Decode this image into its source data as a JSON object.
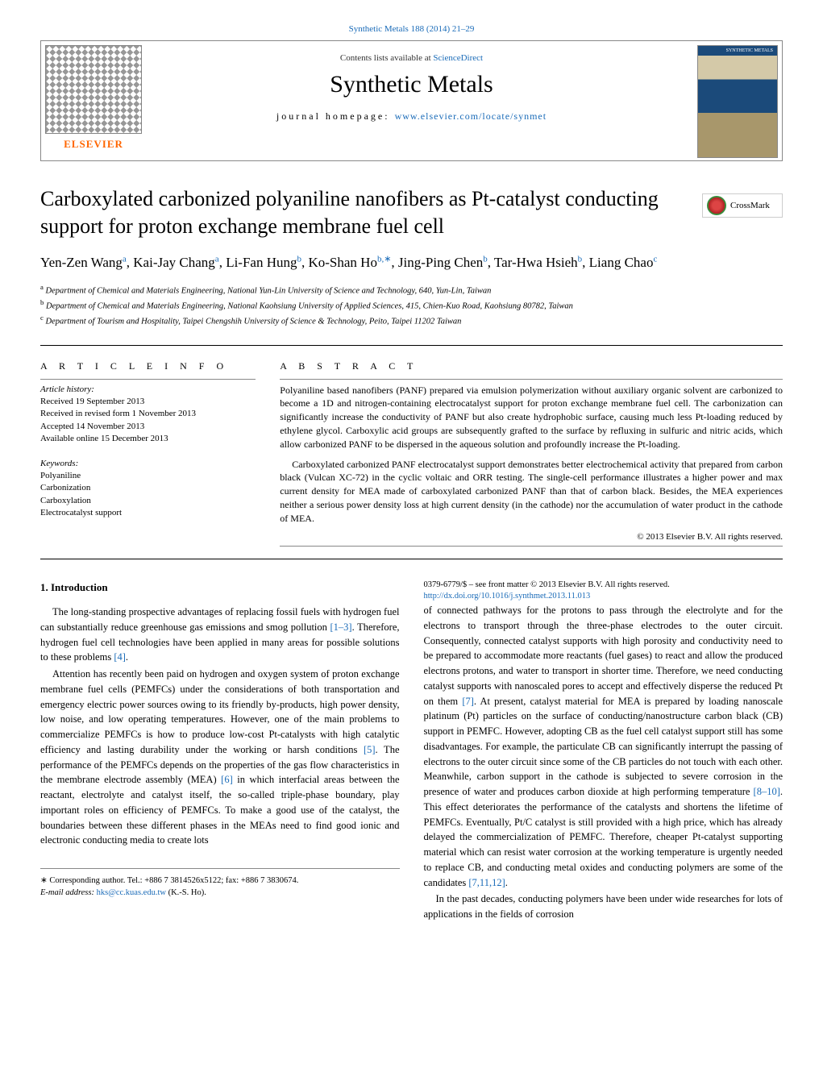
{
  "journal_citation": "Synthetic Metals 188 (2014) 21–29",
  "header": {
    "contents_line_prefix": "Contents lists available at ",
    "contents_line_link": "ScienceDirect",
    "journal_name": "Synthetic Metals",
    "homepage_label": "journal homepage: ",
    "homepage_url": "www.elsevier.com/locate/synmet",
    "publisher": "ELSEVIER"
  },
  "crossmark": "CrossMark",
  "article": {
    "title": "Carboxylated carbonized polyaniline nanofibers as Pt-catalyst conducting support for proton exchange membrane fuel cell",
    "authors_html": "Yen-Zen Wang",
    "authors_parts": [
      {
        "name": "Yen-Zen Wang",
        "sup": "a"
      },
      {
        "name": ", Kai-Jay Chang",
        "sup": "a"
      },
      {
        "name": ", Li-Fan Hung",
        "sup": "b"
      },
      {
        "name": ", Ko-Shan Ho",
        "sup": "b,∗"
      },
      {
        "name": ", Jing-Ping Chen",
        "sup": "b"
      },
      {
        "name": ", Tar-Hwa Hsieh",
        "sup": "b"
      },
      {
        "name": ", Liang Chao",
        "sup": "c"
      }
    ]
  },
  "affiliations": [
    {
      "sup": "a",
      "text": " Department of Chemical and Materials Engineering, National Yun-Lin University of Science and Technology, 640, Yun-Lin, Taiwan"
    },
    {
      "sup": "b",
      "text": " Department of Chemical and Materials Engineering, National Kaohsiung University of Applied Sciences, 415, Chien-Kuo Road, Kaohsiung 80782, Taiwan"
    },
    {
      "sup": "c",
      "text": " Department of Tourism and Hospitality, Taipei Chengshih University of Science & Technology, Peito, Taipei 11202 Taiwan"
    }
  ],
  "info": {
    "label": "A R T I C L E   I N F O",
    "history_title": "Article history:",
    "history": [
      "Received 19 September 2013",
      "Received in revised form 1 November 2013",
      "Accepted 14 November 2013",
      "Available online 15 December 2013"
    ],
    "keywords_title": "Keywords:",
    "keywords": [
      "Polyaniline",
      "Carbonization",
      "Carboxylation",
      "Electrocatalyst support"
    ]
  },
  "abstract": {
    "label": "A B S T R A C T",
    "paragraphs": [
      "Polyaniline based nanofibers (PANF) prepared via emulsion polymerization without auxiliary organic solvent are carbonized to become a 1D and nitrogen-containing electrocatalyst support for proton exchange membrane fuel cell. The carbonization can significantly increase the conductivity of PANF but also create hydrophobic surface, causing much less Pt-loading reduced by ethylene glycol. Carboxylic acid groups are subsequently grafted to the surface by refluxing in sulfuric and nitric acids, which allow carbonized PANF to be dispersed in the aqueous solution and profoundly increase the Pt-loading.",
      "Carboxylated carbonized PANF electrocatalyst support demonstrates better electrochemical activity that prepared from carbon black (Vulcan XC-72) in the cyclic voltaic and ORR testing. The single-cell performance illustrates a higher power and max current density for MEA made of carboxylated carbonized PANF than that of carbon black. Besides, the MEA experiences neither a serious power density loss at high current density (in the cathode) nor the accumulation of water product in the cathode of MEA."
    ],
    "copyright": "© 2013 Elsevier B.V. All rights reserved."
  },
  "section1": {
    "heading": "1.  Introduction",
    "p1_pre": "The long-standing prospective advantages of replacing fossil fuels with hydrogen fuel can substantially reduce greenhouse gas emissions and smog pollution ",
    "p1_ref1": "[1–3]",
    "p1_mid": ". Therefore, hydrogen fuel cell technologies have been applied in many areas for possible solutions to these problems ",
    "p1_ref2": "[4]",
    "p1_end": ".",
    "p2_pre": "Attention has recently been paid on hydrogen and oxygen system of proton exchange membrane fuel cells (PEMFCs) under the considerations of both transportation and emergency electric power sources owing to its friendly by-products, high power density, low noise, and low operating temperatures. However, one of the main problems to commercialize PEMFCs is how to produce low-cost Pt-catalysts with high catalytic efficiency and lasting durability under the working or harsh conditions ",
    "p2_ref1": "[5]",
    "p2_mid": ". The performance of the PEMFCs depends on the properties of the gas flow characteristics in the membrane electrode assembly (MEA) ",
    "p2_ref2": "[6]",
    "p2_end": " in which interfacial areas between the reactant, electrolyte and catalyst itself, the so-called triple-phase boundary, play important roles on efficiency of PEMFCs. To make a good use of the catalyst, the boundaries between these different phases in the MEAs need to find good ionic and electronic conducting media to create lots",
    "p3_pre": "of connected pathways for the protons to pass through the electrolyte and for the electrons to transport through the three-phase electrodes to the outer circuit. Consequently, connected catalyst supports with high porosity and conductivity need to be prepared to accommodate more reactants (fuel gases) to react and allow the produced electrons protons, and water to transport in shorter time. Therefore, we need conducting catalyst supports with nanoscaled pores to accept and effectively disperse the reduced Pt on them ",
    "p3_ref1": "[7]",
    "p3_mid": ". At present, catalyst material for MEA is prepared by loading nanoscale platinum (Pt) particles on the surface of conducting/nanostructure carbon black (CB) support in PEMFC. However, adopting CB as the fuel cell catalyst support still has some disadvantages. For example, the particulate CB can significantly interrupt the passing of electrons to the outer circuit since some of the CB particles do not touch with each other. Meanwhile, carbon support in the cathode is subjected to severe corrosion in the presence of water and produces carbon dioxide at high performing temperature ",
    "p3_ref2": "[8–10]",
    "p3_mid2": ". This effect deteriorates the performance of the catalysts and shortens the lifetime of PEMFCs. Eventually, Pt/C catalyst is still provided with a high price, which has already delayed the commercialization of PEMFC. Therefore, cheaper Pt-catalyst supporting material which can resist water corrosion at the working temperature is urgently needed to replace CB, and conducting metal oxides and conducting polymers are some of the candidates ",
    "p3_ref3": "[7,11,12]",
    "p3_end": ".",
    "p4": "In the past decades, conducting polymers have been under wide researches for lots of applications in the fields of corrosion"
  },
  "footer": {
    "corr": "∗ Corresponding author. Tel.: +886 7 3814526x5122; fax: +886 7 3830674.",
    "email_label": "E-mail address: ",
    "email": "hks@cc.kuas.edu.tw",
    "email_suffix": " (K.-S. Ho).",
    "issn": "0379-6779/$ – see front matter © 2013 Elsevier B.V. All rights reserved.",
    "doi": "http://dx.doi.org/10.1016/j.synthmet.2013.11.013"
  },
  "colors": {
    "link": "#1a6bb8",
    "text": "#000000",
    "orange": "#ff6600"
  }
}
